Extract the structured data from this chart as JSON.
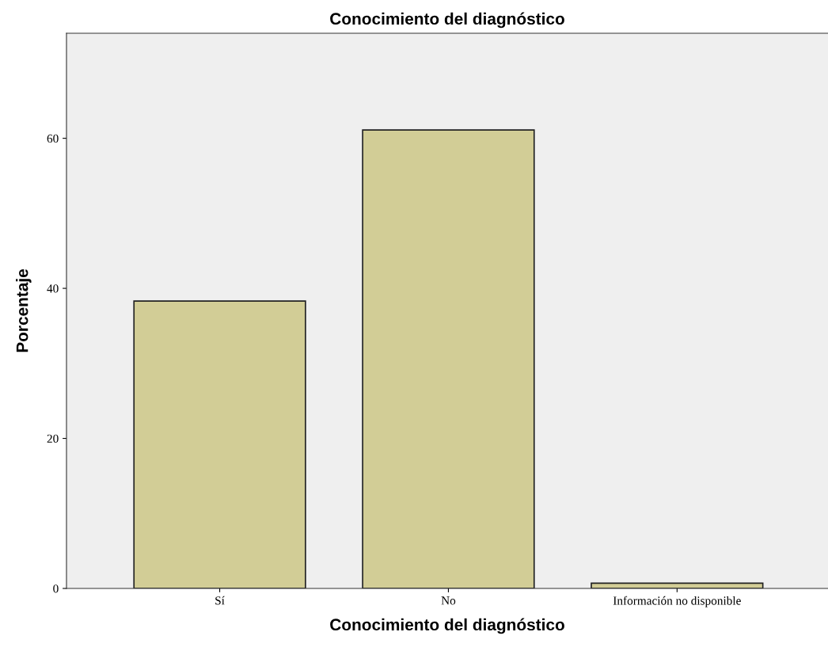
{
  "chart_data": {
    "type": "bar",
    "title": "Conocimiento del diagnóstico",
    "xlabel": "Conocimiento del diagnóstico",
    "ylabel": "Porcentaje",
    "categories": [
      "Sí",
      "No",
      "Información no disponible"
    ],
    "values": [
      38.3,
      61.1,
      0.7
    ],
    "color": "#d2cd96",
    "ylim": [
      0,
      74
    ],
    "yticks": [
      0,
      20,
      40,
      60
    ],
    "grid": false,
    "legend": false
  }
}
